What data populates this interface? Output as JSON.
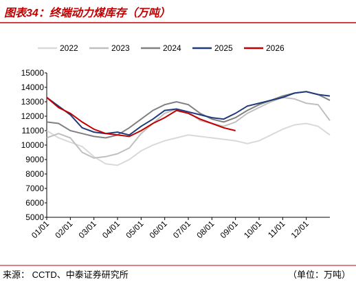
{
  "chart_data": {
    "type": "line",
    "title": "图表34：终端动力煤库存（万吨）",
    "source": "来源：  CCTD、中泰证券研究所",
    "unit_note": "（单位：万吨）",
    "categories": [
      "01/01",
      null,
      "02/01",
      null,
      "03/01",
      null,
      "04/01",
      null,
      "05/01",
      null,
      "06/01",
      null,
      "07/01",
      null,
      "08/01",
      null,
      "09/01",
      null,
      "10/01",
      null,
      "11/01",
      null,
      "12/01",
      null,
      null
    ],
    "series": [
      {
        "name": "2022",
        "color": "#d9d9d9",
        "values": [
          11000,
          10500,
          10200,
          9900,
          9200,
          8700,
          8600,
          9000,
          9600,
          10000,
          10300,
          10500,
          10700,
          10600,
          10500,
          10400,
          10300,
          10100,
          10300,
          10700,
          11100,
          11400,
          11500,
          11300,
          10700
        ]
      },
      {
        "name": "2023",
        "color": "#bfbfbf",
        "values": [
          10500,
          10800,
          10500,
          9500,
          9100,
          9200,
          9400,
          9800,
          10800,
          11500,
          12200,
          12500,
          12300,
          11700,
          11500,
          11300,
          11600,
          12200,
          12600,
          13000,
          13300,
          13200,
          12900,
          12800,
          11700
        ]
      },
      {
        "name": "2024",
        "color": "#808080",
        "values": [
          11600,
          11500,
          11000,
          10800,
          10600,
          10500,
          10700,
          11200,
          11800,
          12400,
          12800,
          13000,
          12800,
          12200,
          11800,
          11600,
          11900,
          12400,
          12800,
          13100,
          13400,
          13600,
          13700,
          13500,
          13100
        ]
      },
      {
        "name": "2025",
        "color": "#1f3a7a",
        "values": [
          13300,
          12700,
          12100,
          11200,
          10900,
          10800,
          10900,
          10700,
          11300,
          11800,
          12400,
          12500,
          12300,
          12100,
          11900,
          11800,
          12200,
          12700,
          12900,
          13100,
          13300,
          13600,
          13700,
          13500,
          13400
        ]
      },
      {
        "name": "2026",
        "color": "#c00000",
        "values": [
          13300,
          12600,
          12200,
          11600,
          11100,
          10800,
          10700,
          10600,
          11000,
          11500,
          11900,
          12400,
          12200,
          11800,
          11500,
          11200,
          11000,
          null,
          null,
          null,
          null,
          null,
          null,
          null,
          null
        ]
      }
    ],
    "ylim": [
      5000,
      15000
    ],
    "yticks": [
      5000,
      6000,
      7000,
      8000,
      9000,
      10000,
      11000,
      12000,
      13000,
      14000,
      15000
    ]
  }
}
